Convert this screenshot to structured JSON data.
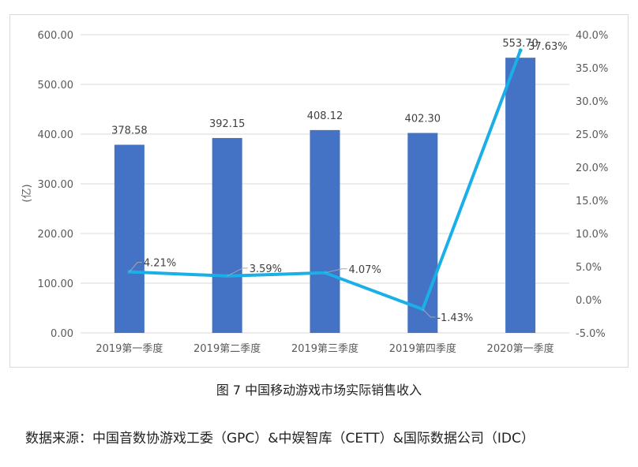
{
  "caption": "图 7  中国移动游戏市场实际销售收入",
  "source": "数据来源：中国音数协游戏工委（GPC）&中娱智库（CETT）&国际数据公司（IDC）",
  "colors": {
    "bar": "#4472C4",
    "line": "#1AAFE6",
    "grid": "#d9d9d9",
    "leader": "#a6a6a6"
  },
  "chart_data": {
    "type": "bar",
    "title": "",
    "categories": [
      "2019第一季度",
      "2019第二季度",
      "2019第三季度",
      "2019第四季度",
      "2020第一季度"
    ],
    "series": [
      {
        "type": "bar",
        "axis": "left",
        "values": [
          378.58,
          392.15,
          408.12,
          402.3,
          553.7
        ],
        "labels": [
          "378.58",
          "392.15",
          "408.12",
          "402.30",
          "553.70"
        ]
      },
      {
        "type": "line",
        "axis": "right",
        "values": [
          4.21,
          3.59,
          4.07,
          -1.43,
          37.63
        ],
        "labels": [
          "4.21%",
          "3.59%",
          "4.07%",
          "-1.43%",
          "37.63%"
        ]
      }
    ],
    "ylabel": "(亿)",
    "ylim": [
      0,
      600
    ],
    "yticks": [
      "0.00",
      "100.00",
      "200.00",
      "300.00",
      "400.00",
      "500.00",
      "600.00"
    ],
    "y2lim": [
      -5,
      40
    ],
    "y2ticks": [
      "-5.0%",
      "0.0%",
      "5.0%",
      "10.0%",
      "15.0%",
      "20.0%",
      "25.0%",
      "30.0%",
      "35.0%",
      "40.0%"
    ],
    "grid": true,
    "legend": "none"
  }
}
